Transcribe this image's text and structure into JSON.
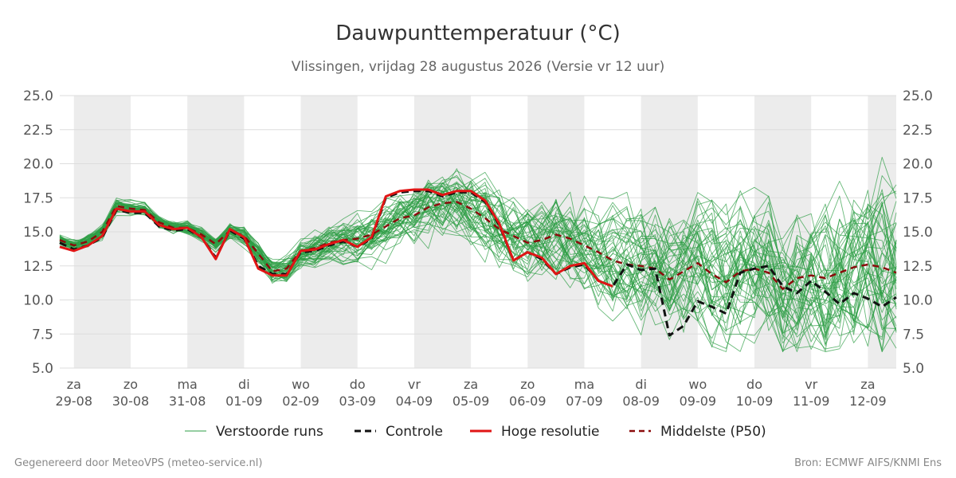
{
  "header": {
    "title": "Dauwpunttemperatuur (°C)",
    "subtitle": "Vlissingen, vrijdag 28 augustus 2026 (Versie vr 12 uur)"
  },
  "footer": {
    "left": "Gegenereerd door MeteoVPS (meteo-service.nl)",
    "right": "Bron: ECMWF AIFS/KNMI Ens"
  },
  "colors": {
    "ensemble": "#2e9e45",
    "control": "#111111",
    "hres": "#e01515",
    "median": "#8b0c0c",
    "band": "#ececec",
    "grid": "#dddddd"
  },
  "chart_data": {
    "type": "line",
    "ylim": [
      5.0,
      25.0
    ],
    "yticks": [
      "5.0",
      "7.5",
      "10.0",
      "12.5",
      "15.0",
      "17.5",
      "20.0",
      "22.5",
      "25.0"
    ],
    "xlim": [
      -0.25,
      14.5
    ],
    "x_categories": [
      {
        "day": "za",
        "date": "29-08"
      },
      {
        "day": "zo",
        "date": "30-08"
      },
      {
        "day": "ma",
        "date": "31-08"
      },
      {
        "day": "di",
        "date": "01-09"
      },
      {
        "day": "wo",
        "date": "02-09"
      },
      {
        "day": "do",
        "date": "03-09"
      },
      {
        "day": "vr",
        "date": "04-09"
      },
      {
        "day": "za",
        "date": "05-09"
      },
      {
        "day": "zo",
        "date": "06-09"
      },
      {
        "day": "ma",
        "date": "07-09"
      },
      {
        "day": "di",
        "date": "08-09"
      },
      {
        "day": "wo",
        "date": "09-09"
      },
      {
        "day": "do",
        "date": "10-09"
      },
      {
        "day": "vr",
        "date": "11-09"
      },
      {
        "day": "za",
        "date": "12-09"
      }
    ],
    "legend": [
      {
        "label": "Verstoorde runs",
        "key": "ensemble"
      },
      {
        "label": "Controle",
        "key": "control"
      },
      {
        "label": "Hoge resolutie",
        "key": "hres"
      },
      {
        "label": "Middelste (P50)",
        "key": "median"
      }
    ],
    "series": [
      {
        "name": "Hoge resolutie",
        "x": [
          -0.25,
          0.0,
          0.25,
          0.5,
          0.75,
          1.0,
          1.25,
          1.5,
          1.75,
          2.0,
          2.25,
          2.5,
          2.75,
          3.0,
          3.25,
          3.5,
          3.75,
          4.0,
          4.25,
          4.5,
          4.75,
          5.0,
          5.25,
          5.5,
          5.75,
          6.0,
          6.25,
          6.5,
          6.75,
          7.0,
          7.25,
          7.5,
          7.75,
          8.0,
          8.25,
          8.5,
          8.75,
          9.0,
          9.25,
          9.5
        ],
        "values": [
          13.9,
          13.6,
          14.0,
          14.7,
          16.7,
          16.5,
          16.5,
          15.5,
          15.2,
          15.3,
          14.6,
          13.0,
          15.2,
          14.6,
          12.3,
          11.8,
          11.8,
          13.6,
          13.7,
          14.1,
          14.4,
          13.9,
          14.6,
          17.6,
          18.0,
          18.1,
          18.1,
          17.7,
          18.0,
          18.0,
          17.3,
          15.6,
          12.9,
          13.5,
          13.1,
          11.9,
          12.5,
          12.7,
          11.4,
          11.0
        ]
      },
      {
        "name": "Controle",
        "x": [
          -0.25,
          0.0,
          0.25,
          0.5,
          0.75,
          1.0,
          1.25,
          1.5,
          1.75,
          2.0,
          2.25,
          2.5,
          2.75,
          3.0,
          3.25,
          3.5,
          3.75,
          4.0,
          4.25,
          4.5,
          4.75,
          5.0,
          5.25,
          5.5,
          5.75,
          6.0,
          6.25,
          6.5,
          6.75,
          7.0,
          7.25,
          7.5,
          7.75,
          8.0,
          8.25,
          8.5,
          8.75,
          9.0,
          9.25,
          9.5,
          9.75,
          10.0,
          10.25,
          10.5,
          10.75,
          11.0,
          11.25,
          11.5,
          11.75,
          12.0,
          12.25,
          12.5,
          12.75,
          13.0,
          13.25,
          13.5,
          13.75,
          14.0,
          14.25,
          14.5
        ],
        "values": [
          14.2,
          13.7,
          14.0,
          14.6,
          16.6,
          16.4,
          16.4,
          15.4,
          15.1,
          15.2,
          14.6,
          13.1,
          15.1,
          14.5,
          12.5,
          11.9,
          11.9,
          13.5,
          13.6,
          14.0,
          14.3,
          13.9,
          14.5,
          17.5,
          17.9,
          18.0,
          18.0,
          17.6,
          17.9,
          17.9,
          17.2,
          15.5,
          12.9,
          13.5,
          13.0,
          11.9,
          12.4,
          12.6,
          11.4,
          11.0,
          12.6,
          12.2,
          12.3,
          7.4,
          8.1,
          9.9,
          9.5,
          9.0,
          12.0,
          12.3,
          12.5,
          11.0,
          10.5,
          11.4,
          10.6,
          9.7,
          10.5,
          10.1,
          9.5,
          10.2
        ]
      },
      {
        "name": "Middelste (P50)",
        "x": [
          -0.25,
          0.0,
          0.25,
          0.5,
          0.75,
          1.0,
          1.25,
          1.5,
          1.75,
          2.0,
          2.25,
          2.5,
          2.75,
          3.0,
          3.25,
          3.5,
          3.75,
          4.0,
          4.25,
          4.5,
          4.75,
          5.0,
          5.25,
          5.5,
          5.75,
          6.0,
          6.25,
          6.5,
          6.75,
          7.0,
          7.25,
          7.5,
          7.75,
          8.0,
          8.25,
          8.5,
          8.75,
          9.0,
          9.25,
          9.5,
          9.75,
          10.0,
          10.25,
          10.5,
          10.75,
          11.0,
          11.25,
          11.5,
          11.75,
          12.0,
          12.25,
          12.5,
          12.75,
          13.0,
          13.25,
          13.5,
          13.75,
          14.0,
          14.25,
          14.5
        ],
        "values": [
          14.4,
          14.0,
          14.3,
          15.0,
          16.9,
          16.7,
          16.6,
          15.7,
          15.3,
          15.3,
          14.8,
          14.1,
          15.1,
          14.7,
          13.4,
          12.1,
          12.3,
          13.6,
          13.8,
          14.2,
          14.4,
          14.5,
          14.8,
          15.4,
          16.0,
          16.2,
          16.8,
          17.1,
          17.2,
          16.7,
          16.0,
          15.2,
          14.7,
          14.2,
          14.4,
          14.8,
          14.5,
          14.0,
          13.5,
          12.9,
          12.6,
          12.5,
          12.3,
          11.5,
          12.1,
          12.7,
          11.9,
          11.3,
          12.1,
          12.3,
          12.0,
          10.8,
          11.6,
          11.8,
          11.6,
          12.0,
          12.4,
          12.6,
          12.4,
          12.0
        ]
      }
    ]
  }
}
